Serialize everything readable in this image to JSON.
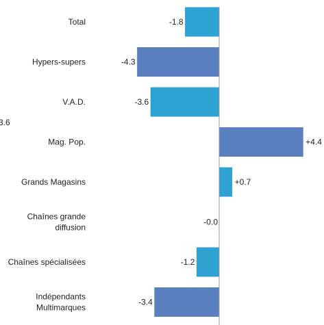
{
  "chart_data": {
    "type": "bar",
    "orientation": "horizontal",
    "categories": [
      "Total",
      "Hypers-supers",
      "V.A.D.",
      "Mag. Pop.",
      "Grands Magasins",
      "Chaînes grande diffusion",
      "Chaînes spécialisées",
      "Indépendants Multimarques"
    ],
    "category_lines": [
      [
        "Total"
      ],
      [
        "Hypers-supers"
      ],
      [
        "V.A.D."
      ],
      [
        "Mag. Pop."
      ],
      [
        "Grands Magasins"
      ],
      [
        "Chaînes grande",
        "diffusion"
      ],
      [
        "Chaînes spécialisées"
      ],
      [
        "Indépendants",
        "Multimarques"
      ]
    ],
    "values": [
      -1.8,
      -4.3,
      -3.6,
      4.4,
      0.7,
      -0.0,
      -1.2,
      -3.4
    ],
    "value_labels": [
      "-1.8",
      "-4.3",
      "-3.6",
      "+4.4",
      "+0.7",
      "-0.0",
      "-1.2",
      "-3.4"
    ],
    "bar_colors": [
      "#2ea3d3",
      "#5b80c0",
      "#2ea3d3",
      "#5b80c0",
      "#2ea3d3",
      "#5b80c0",
      "#2ea3d3",
      "#5b80c0"
    ],
    "cropped_left_label": "3.6",
    "title": "",
    "xlabel": "",
    "ylabel": "",
    "xlim": [
      -5.25,
      4.4
    ],
    "grid": false,
    "legend": "none"
  }
}
